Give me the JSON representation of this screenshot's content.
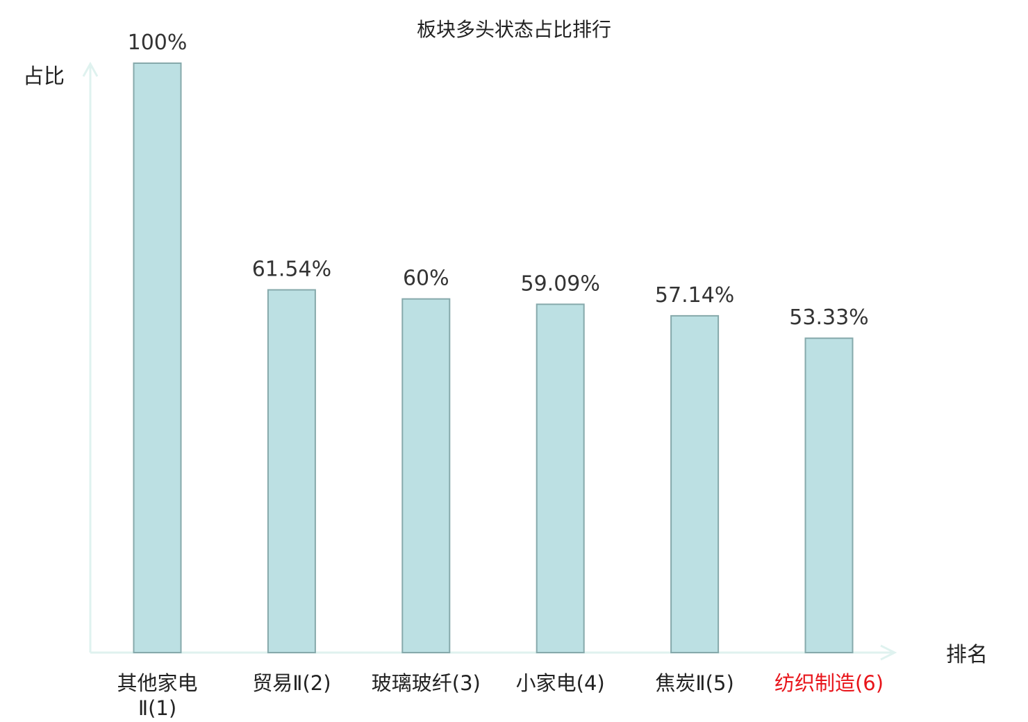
{
  "chart_data": {
    "type": "bar",
    "title": "板块多头状态占比排行",
    "ylabel": "占比",
    "xlabel": "排名",
    "categories": [
      "其他家电Ⅱ",
      "贸易Ⅱ",
      "玻璃玻纤",
      "小家电",
      "焦炭Ⅱ",
      "纺织制造"
    ],
    "tick_labels": [
      [
        "其他家电",
        "Ⅱ(1)"
      ],
      [
        "贸易Ⅱ(2)"
      ],
      [
        "玻璃玻纤(3)"
      ],
      [
        "小家电(4)"
      ],
      [
        "焦炭Ⅱ(5)"
      ],
      [
        "纺织制造(6)"
      ]
    ],
    "values": [
      100,
      61.54,
      60,
      59.09,
      57.14,
      53.33
    ],
    "value_labels": [
      "100%",
      "61.54%",
      "60%",
      "59.09%",
      "57.14%",
      "53.33%"
    ],
    "highlight_index": 5,
    "ylim": [
      0,
      100
    ],
    "grid": false,
    "legend": "none",
    "colors": {
      "bar_fill": "#bce0e3",
      "bar_stroke": "#86a9ab",
      "axis": "#dff2ef",
      "tick_text": "#222222",
      "highlight_text": "#e8141a",
      "value_text": "#333333"
    }
  }
}
